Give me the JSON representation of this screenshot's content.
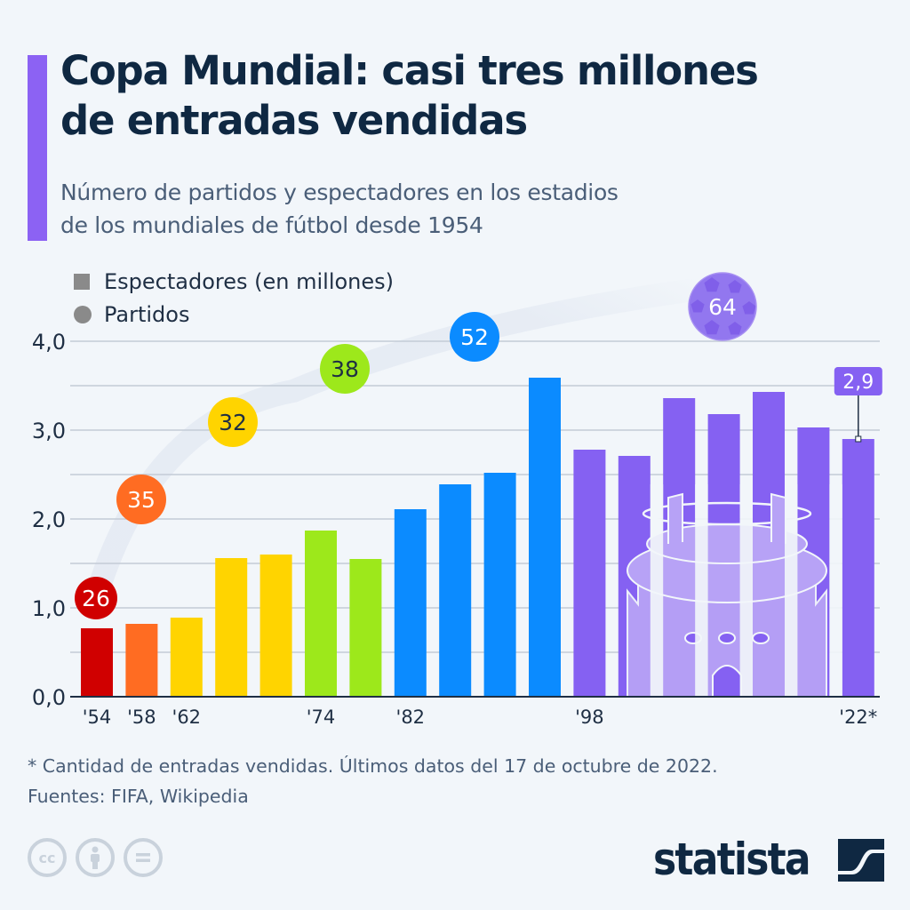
{
  "header": {
    "title_lines": [
      "Copa Mundial: casi tres millones",
      "de entradas vendidas"
    ],
    "subtitle_lines": [
      "Número de partidos y espectadores en los estadios",
      "de los mundiales de fútbol desde 1954"
    ]
  },
  "legend": {
    "items": [
      {
        "label": "Espectadores (en millones)",
        "shape": "square"
      },
      {
        "label": "Partidos",
        "shape": "circle"
      }
    ]
  },
  "chart_data": {
    "type": "bar",
    "title": "Copa Mundial: casi tres millones de entradas vendidas",
    "subtitle": "Número de partidos y espectadores en los estadios de los mundiales de fútbol desde 1954",
    "xlabel": "",
    "ylabel": "Espectadores (en millones)",
    "ylim": [
      0,
      4
    ],
    "yticks": [
      0,
      1,
      2,
      3,
      4
    ],
    "ytick_labels": [
      "0,0",
      "1,0",
      "2,0",
      "3,0",
      "4,0"
    ],
    "grid": true,
    "legend_position": "top-left",
    "categories": [
      "1954",
      "1958",
      "1962",
      "1966",
      "1970",
      "1974",
      "1978",
      "1982",
      "1986",
      "1990",
      "1994",
      "1998",
      "2002",
      "2006",
      "2010",
      "2014",
      "2018",
      "2022"
    ],
    "x_tick_labels": [
      "'54",
      "'58",
      "'62",
      "",
      "",
      "'74",
      "",
      "'82",
      "",
      "",
      "",
      "'98",
      "",
      "",
      "",
      "",
      "",
      "'22*"
    ],
    "series": [
      {
        "name": "Espectadores (en millones)",
        "values": [
          0.77,
          0.82,
          0.89,
          1.56,
          1.6,
          1.87,
          1.55,
          2.11,
          2.39,
          2.52,
          3.59,
          2.78,
          2.71,
          3.36,
          3.18,
          3.43,
          3.03,
          2.9
        ],
        "colors": [
          "#d00000",
          "#ff6c22",
          "#ffd400",
          "#ffd400",
          "#ffd400",
          "#9de81b",
          "#9de81b",
          "#0b8bff",
          "#0b8bff",
          "#0b8bff",
          "#0b8bff",
          "#8561f2",
          "#8561f2",
          "#8561f2",
          "#8561f2",
          "#8561f2",
          "#8561f2",
          "#8561f2"
        ]
      }
    ],
    "matches_annotations": [
      {
        "label": "26",
        "first_year": "1954",
        "color": "#d00000",
        "text_color": "#ffffff"
      },
      {
        "label": "35",
        "first_year": "1958",
        "color": "#ff6c22",
        "text_color": "#ffffff"
      },
      {
        "label": "32",
        "first_year": "1962",
        "color": "#ffd400",
        "text_color": "#1f2f44"
      },
      {
        "label": "38",
        "first_year": "1974",
        "color": "#9de81b",
        "text_color": "#1f2f44"
      },
      {
        "label": "52",
        "first_year": "1982",
        "color": "#0b8bff",
        "text_color": "#ffffff"
      },
      {
        "label": "64",
        "first_year": "1998",
        "color": "#9277ef",
        "text_color": "#ffffff"
      }
    ],
    "value_callout": {
      "category": "2022",
      "label": "2,9",
      "color": "#8561f2"
    }
  },
  "footer": {
    "note": "* Cantidad de entradas vendidas. Últimos datos del 17 de octubre de 2022.",
    "sources": "Fuentes: FIFA, Wikipedia",
    "license_icons": [
      "cc-icon",
      "attribution-icon",
      "no-derivatives-icon"
    ],
    "brand": "statista"
  },
  "colors": {
    "background": "#f2f6fa",
    "accent": "#8c62f3",
    "title": "#0f2842",
    "subtitle": "#4a5e78"
  }
}
